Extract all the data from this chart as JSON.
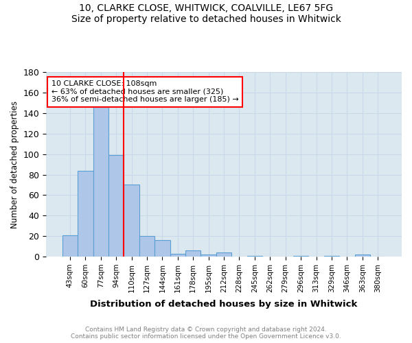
{
  "title_line1": "10, CLARKE CLOSE, WHITWICK, COALVILLE, LE67 5FG",
  "title_line2": "Size of property relative to detached houses in Whitwick",
  "xlabel": "Distribution of detached houses by size in Whitwick",
  "ylabel": "Number of detached properties",
  "footnote": "Contains HM Land Registry data © Crown copyright and database right 2024.\nContains public sector information licensed under the Open Government Licence v3.0.",
  "bin_labels": [
    "43sqm",
    "60sqm",
    "77sqm",
    "94sqm",
    "110sqm",
    "127sqm",
    "144sqm",
    "161sqm",
    "178sqm",
    "195sqm",
    "212sqm",
    "228sqm",
    "245sqm",
    "262sqm",
    "279sqm",
    "296sqm",
    "313sqm",
    "329sqm",
    "346sqm",
    "363sqm",
    "380sqm"
  ],
  "bin_values": [
    21,
    84,
    146,
    99,
    70,
    20,
    16,
    3,
    6,
    2,
    4,
    0,
    1,
    0,
    0,
    1,
    0,
    1,
    0,
    2,
    0
  ],
  "bar_color": "#aec6e8",
  "bar_edge_color": "#5a9fd4",
  "vline_pos": 3.5,
  "vline_color": "red",
  "annotation_text": "10 CLARKE CLOSE: 108sqm\n← 63% of detached houses are smaller (325)\n36% of semi-detached houses are larger (185) →",
  "annotation_box_color": "white",
  "annotation_box_edge_color": "red",
  "ylim": [
    0,
    180
  ],
  "yticks": [
    0,
    20,
    40,
    60,
    80,
    100,
    120,
    140,
    160,
    180
  ],
  "grid_color": "#c8d8e8",
  "background_color": "#dce8f0"
}
